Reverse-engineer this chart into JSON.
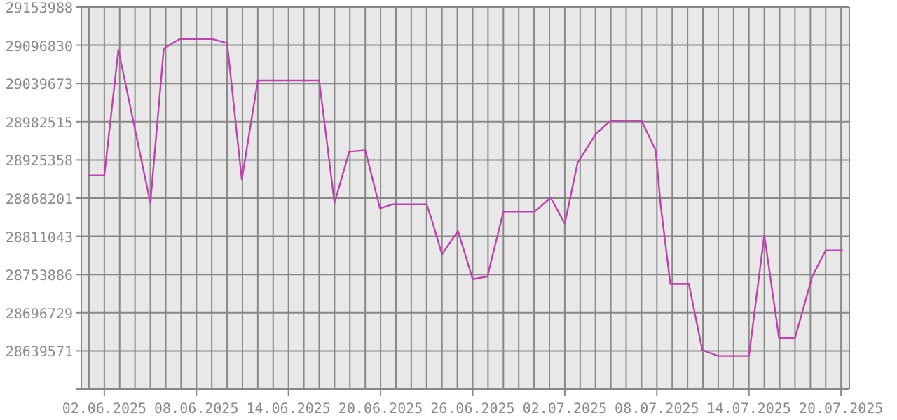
{
  "chart_data": {
    "type": "line",
    "x": [
      "2025-05-31T23:00",
      "2025-06-02T00:00",
      "2025-06-02T22:00",
      "2025-06-05T00:00",
      "2025-06-05T21:00",
      "2025-06-06T22:00",
      "2025-06-09T01:00",
      "2025-06-10T00:00",
      "2025-06-10T23:00",
      "2025-06-12T00:00",
      "2025-06-16T00:00",
      "2025-06-17T00:00",
      "2025-06-17T23:00",
      "2025-06-19T00:00",
      "2025-06-19T23:00",
      "2025-06-20T18:00",
      "2025-06-23T00:00",
      "2025-06-23T08:00",
      "2025-06-24T00:00",
      "2025-06-25T01:00",
      "2025-06-26T00:00",
      "2025-06-26T23:00",
      "2025-06-28T00:00",
      "2025-06-30T01:00",
      "2025-07-01T02:00",
      "2025-07-02T00:00",
      "2025-07-02T20:00",
      "2025-07-04T01:00",
      "2025-07-05T00:00",
      "2025-07-07T00:00",
      "2025-07-07T22:00",
      "2025-07-08T06:00",
      "2025-07-08T21:00",
      "2025-07-10T02:00",
      "2025-07-10T23:00",
      "2025-07-12T00:00",
      "2025-07-14T00:00",
      "2025-07-15T00:00",
      "2025-07-15T23:00",
      "2025-07-17T00:00",
      "2025-07-18T03:00",
      "2025-07-19T00:00",
      "2025-07-20T03:00"
    ],
    "series": [
      {
        "color": "#c040b0",
        "values": [
          28902000,
          28902000,
          29090000,
          28861000,
          29092000,
          29106000,
          29106000,
          29100000,
          28896000,
          29044000,
          29044000,
          28861000,
          28938000,
          28940000,
          28853000,
          28859000,
          28859000,
          28836000,
          28784000,
          28819000,
          28747000,
          28751000,
          28848000,
          28848000,
          28869000,
          28830000,
          28921000,
          28965000,
          28984000,
          28984000,
          28940000,
          28857000,
          28740000,
          28740000,
          28641000,
          28632000,
          28632000,
          28813000,
          28659000,
          28659000,
          28751000,
          28790000,
          28790000
        ]
      }
    ],
    "xlim": [
      "2025-05-31T12:00",
      "2025-07-20T13:00"
    ],
    "xticks": [
      {
        "value": "2025-06-01",
        "label": null
      },
      {
        "value": "2025-06-02",
        "label": "02.06.2025"
      },
      {
        "value": "2025-06-03",
        "label": null
      },
      {
        "value": "2025-06-04",
        "label": null
      },
      {
        "value": "2025-06-05",
        "label": null
      },
      {
        "value": "2025-06-06",
        "label": null
      },
      {
        "value": "2025-06-07",
        "label": null
      },
      {
        "value": "2025-06-08",
        "label": "08.06.2025"
      },
      {
        "value": "2025-06-09",
        "label": null
      },
      {
        "value": "2025-06-10",
        "label": null
      },
      {
        "value": "2025-06-11",
        "label": null
      },
      {
        "value": "2025-06-12",
        "label": null
      },
      {
        "value": "2025-06-13",
        "label": null
      },
      {
        "value": "2025-06-14",
        "label": "14.06.2025"
      },
      {
        "value": "2025-06-15",
        "label": null
      },
      {
        "value": "2025-06-16",
        "label": null
      },
      {
        "value": "2025-06-17",
        "label": null
      },
      {
        "value": "2025-06-18",
        "label": null
      },
      {
        "value": "2025-06-19",
        "label": null
      },
      {
        "value": "2025-06-20",
        "label": "20.06.2025"
      },
      {
        "value": "2025-06-21",
        "label": null
      },
      {
        "value": "2025-06-22",
        "label": null
      },
      {
        "value": "2025-06-23",
        "label": null
      },
      {
        "value": "2025-06-24",
        "label": null
      },
      {
        "value": "2025-06-25",
        "label": null
      },
      {
        "value": "2025-06-26",
        "label": "26.06.2025"
      },
      {
        "value": "2025-06-27",
        "label": null
      },
      {
        "value": "2025-06-28",
        "label": null
      },
      {
        "value": "2025-06-29",
        "label": null
      },
      {
        "value": "2025-06-30",
        "label": null
      },
      {
        "value": "2025-07-01",
        "label": null
      },
      {
        "value": "2025-07-02",
        "label": "02.07.2025"
      },
      {
        "value": "2025-07-03",
        "label": null
      },
      {
        "value": "2025-07-04",
        "label": null
      },
      {
        "value": "2025-07-05",
        "label": null
      },
      {
        "value": "2025-07-06",
        "label": null
      },
      {
        "value": "2025-07-07",
        "label": null
      },
      {
        "value": "2025-07-08",
        "label": "08.07.2025"
      },
      {
        "value": "2025-07-09",
        "label": null
      },
      {
        "value": "2025-07-10",
        "label": null
      },
      {
        "value": "2025-07-11",
        "label": null
      },
      {
        "value": "2025-07-12",
        "label": null
      },
      {
        "value": "2025-07-13",
        "label": null
      },
      {
        "value": "2025-07-14",
        "label": "14.07.2025"
      },
      {
        "value": "2025-07-15",
        "label": null
      },
      {
        "value": "2025-07-16",
        "label": null
      },
      {
        "value": "2025-07-17",
        "label": null
      },
      {
        "value": "2025-07-18",
        "label": null
      },
      {
        "value": "2025-07-19",
        "label": null
      },
      {
        "value": "2025-07-20",
        "label": "20.07.2025"
      }
    ],
    "ylim": [
      28582414,
      29153988
    ],
    "yticks": [
      {
        "value": 28582414,
        "label": null
      },
      28639571,
      28696729,
      28753886,
      28811043,
      28868201,
      28925358,
      28982515,
      29039673,
      29096830,
      29153988
    ],
    "grid": true,
    "marker": "none",
    "line_style": "solid",
    "legend": false
  }
}
